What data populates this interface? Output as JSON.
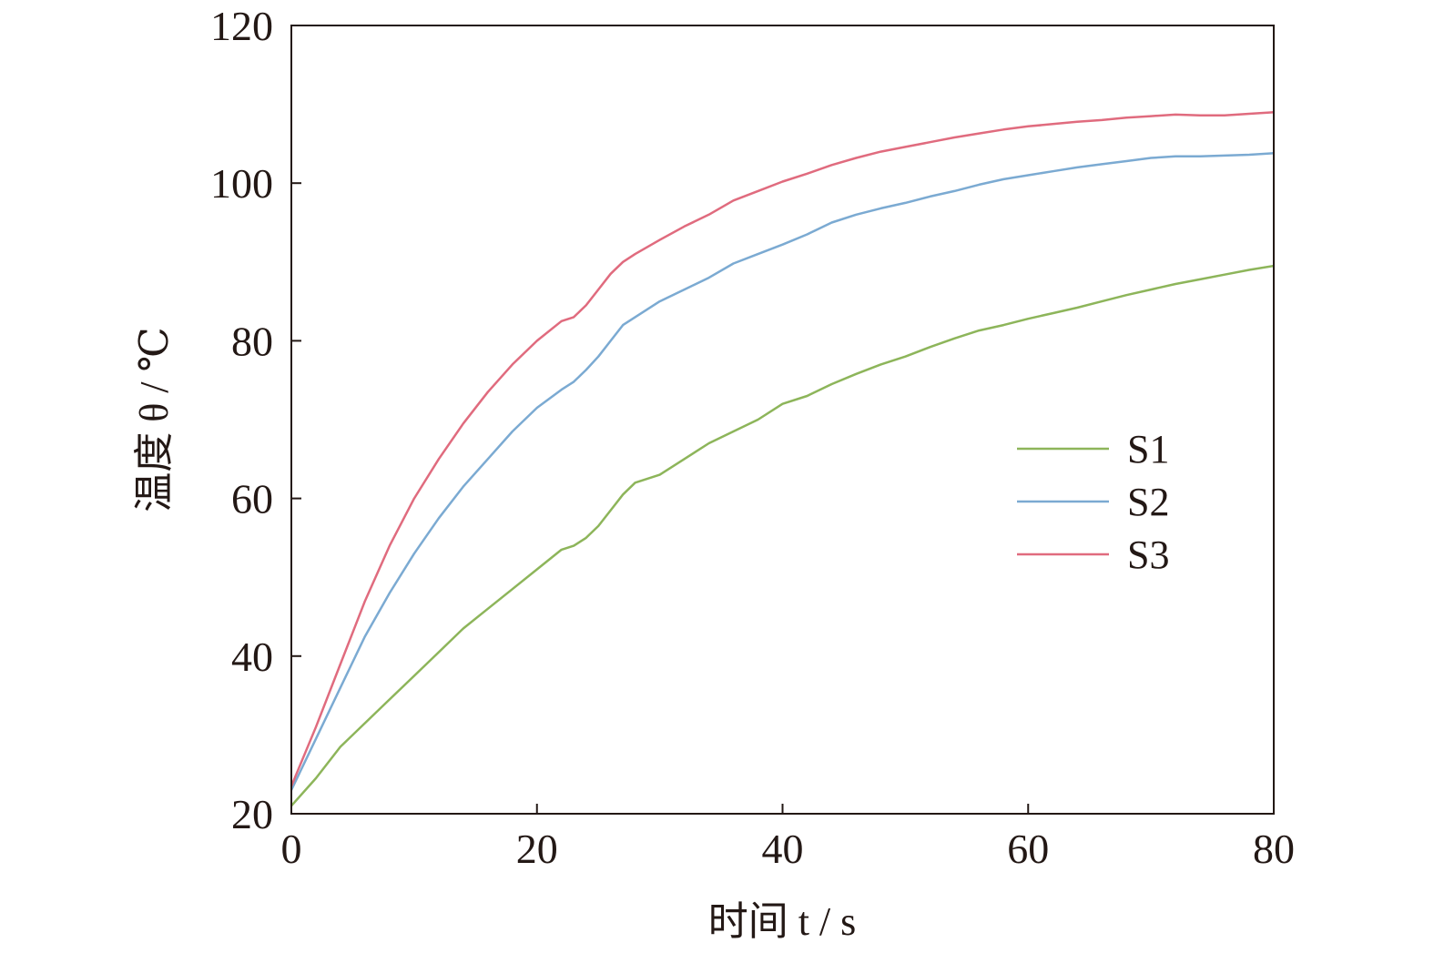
{
  "chart_data": {
    "type": "line",
    "xlabel": "时间 t / s",
    "ylabel": "温度 θ / ℃",
    "xlim": [
      0,
      80
    ],
    "ylim": [
      20,
      120
    ],
    "xticks": [
      0,
      20,
      40,
      60,
      80
    ],
    "yticks": [
      20,
      40,
      60,
      80,
      100,
      120
    ],
    "x_tick_labels": [
      "0",
      "20",
      "40",
      "60",
      "80"
    ],
    "y_tick_labels": [
      "20",
      "40",
      "60",
      "80",
      "100",
      "120"
    ],
    "grid": false,
    "legend_position": "right",
    "x": [
      0,
      2,
      4,
      6,
      8,
      10,
      12,
      14,
      16,
      18,
      20,
      22,
      23,
      24,
      25,
      26,
      27,
      28,
      30,
      32,
      34,
      36,
      38,
      40,
      42,
      44,
      46,
      48,
      50,
      52,
      54,
      56,
      58,
      60,
      62,
      64,
      66,
      68,
      70,
      72,
      74,
      76,
      78,
      80
    ],
    "series": [
      {
        "name": "S1",
        "color": "#8db55a",
        "values": [
          21.0,
          24.5,
          28.5,
          31.5,
          34.5,
          37.5,
          40.5,
          43.5,
          46.0,
          48.5,
          51.0,
          53.5,
          54.0,
          55.0,
          56.5,
          58.5,
          60.5,
          62.0,
          63.0,
          65.0,
          67.0,
          68.5,
          70.0,
          72.0,
          73.0,
          74.5,
          75.8,
          77.0,
          78.0,
          79.2,
          80.3,
          81.3,
          82.0,
          82.8,
          83.5,
          84.2,
          85.0,
          85.8,
          86.5,
          87.2,
          87.8,
          88.4,
          89.0,
          89.5
        ]
      },
      {
        "name": "S2",
        "color": "#7baad2",
        "values": [
          23.0,
          29.5,
          36.0,
          42.5,
          48.0,
          53.0,
          57.5,
          61.5,
          65.0,
          68.5,
          71.5,
          73.8,
          74.8,
          76.3,
          78.0,
          80.0,
          82.0,
          83.0,
          85.0,
          86.5,
          88.0,
          89.8,
          91.0,
          92.2,
          93.5,
          95.0,
          96.0,
          96.8,
          97.5,
          98.3,
          99.0,
          99.8,
          100.5,
          101.0,
          101.5,
          102.0,
          102.4,
          102.8,
          103.2,
          103.4,
          103.4,
          103.5,
          103.6,
          103.8
        ]
      },
      {
        "name": "S3",
        "color": "#e06b7e",
        "values": [
          23.5,
          31.0,
          39.0,
          47.0,
          54.0,
          60.0,
          65.0,
          69.5,
          73.5,
          77.0,
          80.0,
          82.5,
          83.0,
          84.5,
          86.5,
          88.5,
          90.0,
          91.0,
          92.8,
          94.5,
          96.0,
          97.8,
          99.0,
          100.2,
          101.2,
          102.3,
          103.2,
          104.0,
          104.6,
          105.2,
          105.8,
          106.3,
          106.8,
          107.2,
          107.5,
          107.8,
          108.0,
          108.3,
          108.5,
          108.7,
          108.6,
          108.6,
          108.8,
          109.0
        ]
      }
    ]
  }
}
